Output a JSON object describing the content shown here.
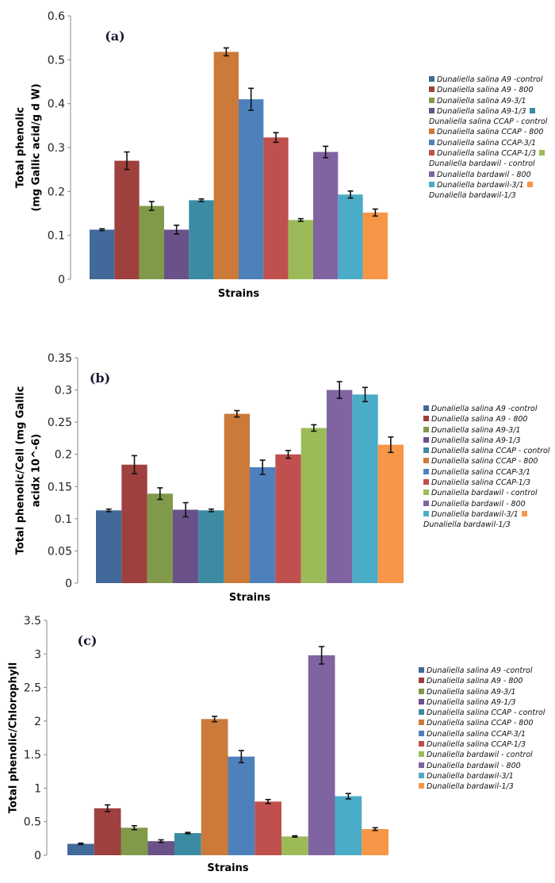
{
  "legend_labels": [
    "Dunaliella salina A9 -control",
    "Dunaliella salina A9 - 800",
    "Dunaliella salina A9-3/1",
    "Dunaliella salina A9-1/3",
    "Dunaliella salina CCAP - control",
    "Dunaliella salina CCAP - 800",
    "Dunaliella salina CCAP-3/1",
    "Dunaliella salina CCAP-1/3",
    "Dunaliella bardawil - control",
    "Dunaliella bardawil - 800",
    "Dunaliella bardawil-3/1",
    "Dunaliella bardawil-1/3"
  ],
  "colors": [
    "#41699a",
    "#9e403e",
    "#809a4a",
    "#6a5189",
    "#3b8ba2",
    "#cc7a39",
    "#4e81bc",
    "#c0504d",
    "#9bbb59",
    "#8064a2",
    "#4aacc6",
    "#f79646"
  ],
  "chart_data": [
    {
      "type": "bar",
      "panel_label": "(a)",
      "title": "",
      "xlabel": "Strains",
      "ylabel_lines": [
        "Total phenolic",
        "(mg Gallic acid/g d W)"
      ],
      "ylim": [
        0,
        0.6
      ],
      "yticks": [
        "0",
        "0.1",
        "0.2",
        "0.3",
        "0.4",
        "0.5",
        "0.6"
      ],
      "ytick_values": [
        0,
        0.1,
        0.2,
        0.3,
        0.4,
        0.5,
        0.6
      ],
      "grid": false,
      "legend_position": "right",
      "series": [
        {
          "name": "Dunaliella salina A9 -control",
          "value": 0.113,
          "error": 0.002
        },
        {
          "name": "Dunaliella salina A9 - 800",
          "value": 0.27,
          "error": 0.02
        },
        {
          "name": "Dunaliella salina A9-3/1",
          "value": 0.167,
          "error": 0.01
        },
        {
          "name": "Dunaliella salina A9-1/3",
          "value": 0.113,
          "error": 0.01
        },
        {
          "name": "Dunaliella salina CCAP - control",
          "value": 0.18,
          "error": 0.003
        },
        {
          "name": "Dunaliella salina CCAP - 800",
          "value": 0.518,
          "error": 0.009
        },
        {
          "name": "Dunaliella salina CCAP-3/1",
          "value": 0.41,
          "error": 0.025
        },
        {
          "name": "Dunaliella salina CCAP-1/3",
          "value": 0.323,
          "error": 0.011
        },
        {
          "name": "Dunaliella bardawil - control",
          "value": 0.135,
          "error": 0.003
        },
        {
          "name": "Dunaliella bardawil - 800",
          "value": 0.29,
          "error": 0.013
        },
        {
          "name": "Dunaliella bardawil-3/1",
          "value": 0.193,
          "error": 0.008
        },
        {
          "name": "Dunaliella bardawil-1/3",
          "value": 0.152,
          "error": 0.008
        }
      ]
    },
    {
      "type": "bar",
      "panel_label": "(b)",
      "title": "",
      "xlabel": "Strains",
      "ylabel_lines": [
        "Total phenolic/Cell (mg Gallic",
        "acidx 10^-6)"
      ],
      "ylim": [
        0,
        0.35
      ],
      "yticks": [
        "0",
        "0.05",
        "0.1",
        "0.15",
        "0.2",
        "0.25",
        "0.3",
        "0.35"
      ],
      "ytick_values": [
        0,
        0.05,
        0.1,
        0.15,
        0.2,
        0.25,
        0.3,
        0.35
      ],
      "grid": false,
      "legend_position": "right",
      "series": [
        {
          "name": "Dunaliella salina A9 -control",
          "value": 0.113,
          "error": 0.002
        },
        {
          "name": "Dunaliella salina A9 - 800",
          "value": 0.184,
          "error": 0.014
        },
        {
          "name": "Dunaliella salina A9-3/1",
          "value": 0.139,
          "error": 0.009
        },
        {
          "name": "Dunaliella salina A9-1/3",
          "value": 0.114,
          "error": 0.011
        },
        {
          "name": "Dunaliella salina CCAP - control",
          "value": 0.113,
          "error": 0.002
        },
        {
          "name": "Dunaliella salina CCAP - 800",
          "value": 0.263,
          "error": 0.005
        },
        {
          "name": "Dunaliella salina CCAP-3/1",
          "value": 0.18,
          "error": 0.011
        },
        {
          "name": "Dunaliella salina CCAP-1/3",
          "value": 0.2,
          "error": 0.006
        },
        {
          "name": "Dunaliella bardawil - control",
          "value": 0.241,
          "error": 0.005
        },
        {
          "name": "Dunaliella bardawil - 800",
          "value": 0.3,
          "error": 0.013
        },
        {
          "name": "Dunaliella bardawil-3/1",
          "value": 0.293,
          "error": 0.011
        },
        {
          "name": "Dunaliella bardawil-1/3",
          "value": 0.215,
          "error": 0.012
        }
      ]
    },
    {
      "type": "bar",
      "panel_label": "(c)",
      "title": "",
      "xlabel": "Strains",
      "ylabel_lines": [
        "Total phenolic/Chlorophyll"
      ],
      "ylim": [
        0,
        3.5
      ],
      "yticks": [
        "0",
        "0.5",
        "1",
        "1.5",
        "2",
        "2.5",
        "3",
        "3.5"
      ],
      "ytick_values": [
        0,
        0.5,
        1,
        1.5,
        2,
        2.5,
        3,
        3.5
      ],
      "grid": false,
      "legend_position": "right",
      "series": [
        {
          "name": "Dunaliella salina A9 -control",
          "value": 0.17,
          "error": 0.01
        },
        {
          "name": "Dunaliella salina A9 - 800",
          "value": 0.7,
          "error": 0.05
        },
        {
          "name": "Dunaliella salina A9-3/1",
          "value": 0.41,
          "error": 0.03
        },
        {
          "name": "Dunaliella salina A9-1/3",
          "value": 0.21,
          "error": 0.02
        },
        {
          "name": "Dunaliella salina CCAP - control",
          "value": 0.33,
          "error": 0.01
        },
        {
          "name": "Dunaliella salina CCAP - 800",
          "value": 2.03,
          "error": 0.04
        },
        {
          "name": "Dunaliella salina CCAP-3/1",
          "value": 1.47,
          "error": 0.09
        },
        {
          "name": "Dunaliella salina CCAP-1/3",
          "value": 0.8,
          "error": 0.03
        },
        {
          "name": "Dunaliella bardawil - control",
          "value": 0.28,
          "error": 0.01
        },
        {
          "name": "Dunaliella bardawil - 800",
          "value": 2.98,
          "error": 0.13
        },
        {
          "name": "Dunaliella bardawil-3/1",
          "value": 0.88,
          "error": 0.04
        },
        {
          "name": "Dunaliella bardawil-1/3",
          "value": 0.39,
          "error": 0.02
        }
      ]
    }
  ]
}
